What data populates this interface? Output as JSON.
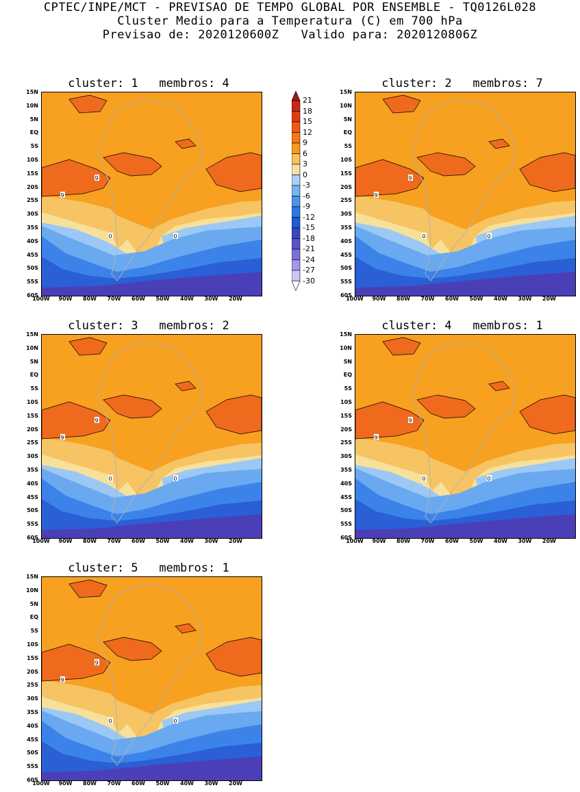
{
  "header": {
    "line1": "CPTEC/INPE/MCT - PREVISAO DE TEMPO GLOBAL POR ENSEMBLE - TQ0126L028",
    "line2": "Cluster Medio para a Temperatura (C) em 700 hPa",
    "line3": "Previsao de: 2020120600Z   Valido para: 2020120806Z"
  },
  "panels": [
    {
      "title": "cluster: 1   membros: 4"
    },
    {
      "title": "cluster: 2   membros: 7"
    },
    {
      "title": "cluster: 3   membros: 2"
    },
    {
      "title": "cluster: 4   membros: 1"
    },
    {
      "title": "cluster: 5   membros: 1"
    }
  ],
  "axes": {
    "lat_labels": [
      "15N",
      "10N",
      "5N",
      "EQ",
      "5S",
      "10S",
      "15S",
      "20S",
      "25S",
      "30S",
      "35S",
      "40S",
      "45S",
      "50S",
      "55S",
      "60S"
    ],
    "lon_labels": [
      "100W",
      "90W",
      "80W",
      "70W",
      "60W",
      "50W",
      "40W",
      "30W",
      "20W"
    ]
  },
  "contour_labels": [
    "9",
    "0"
  ],
  "colorbar": {
    "levels": [
      "21",
      "18",
      "15",
      "12",
      "9",
      "6",
      "3",
      "0",
      "-3",
      "-6",
      "-9",
      "-12",
      "-15",
      "-18",
      "-21",
      "-24",
      "-27",
      "-30"
    ],
    "colors": [
      "#a01818",
      "#c82818",
      "#e03c10",
      "#f05a14",
      "#f47a18",
      "#f89a1e",
      "#f8c060",
      "#f8e0a0",
      "#a8d0f8",
      "#78b4f4",
      "#4c94ec",
      "#2c78e4",
      "#1e5cd2",
      "#3848c0",
      "#5a52c8",
      "#7c70dc",
      "#a496ec",
      "#cec4f6",
      "#ffffff"
    ]
  }
}
